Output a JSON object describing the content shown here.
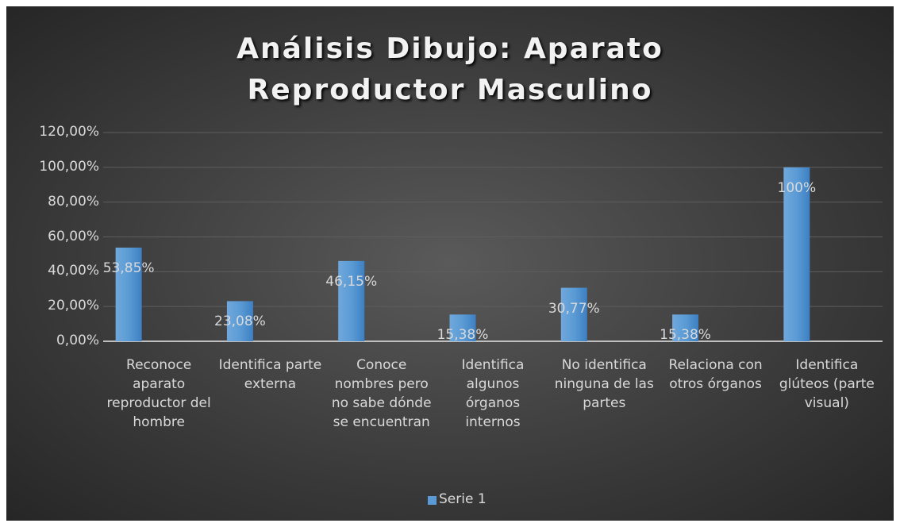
{
  "chart_data": {
    "type": "bar",
    "title": "Análisis Dibujo: Aparato Reproductor Masculino",
    "categories": [
      "Reconoce aparato reproductor del hombre",
      "Identifica parte externa",
      "Conoce nombres pero no sabe dónde se encuentran",
      "Identifica algunos órganos internos",
      "No identifica ninguna de las partes",
      "Relaciona con otros órganos",
      "Identifica glúteos (parte visual)"
    ],
    "series": [
      {
        "name": "Serie 1",
        "color": "#5b9bd5",
        "values": [
          53.85,
          23.08,
          46.15,
          15.38,
          30.77,
          15.38,
          100
        ],
        "value_labels": [
          "53,85%",
          "23,08%",
          "46,15%",
          "15,38%",
          "30,77%",
          "15,38%",
          "100%"
        ]
      }
    ],
    "ylim": [
      0,
      120
    ],
    "yticks": [
      {
        "value": 0,
        "label": "0,00%"
      },
      {
        "value": 20,
        "label": "20,00%"
      },
      {
        "value": 40,
        "label": "40,00%"
      },
      {
        "value": 60,
        "label": "60,00%"
      },
      {
        "value": 80,
        "label": "80,00%"
      },
      {
        "value": 100,
        "label": "100,00%"
      },
      {
        "value": 120,
        "label": "120,00%"
      }
    ],
    "grid": true,
    "legend": "bottom"
  }
}
